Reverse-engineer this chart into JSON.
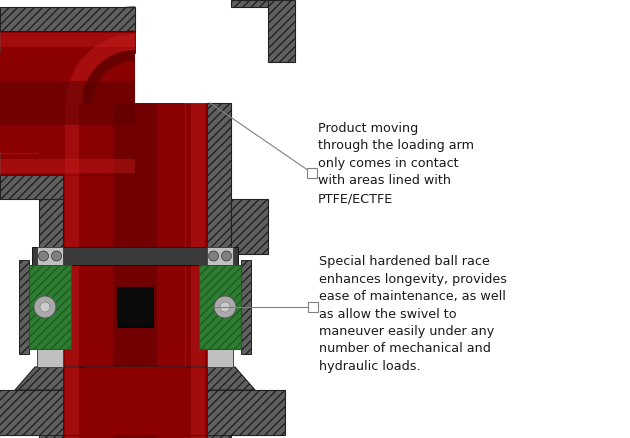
{
  "background_color": "#ffffff",
  "annotation1_text": "Product moving\nthrough the loading arm\nonly comes in contact\nwith areas lined with\nPTFE/ECTFE",
  "annotation2_text": "Special hardened ball race\nenhances longevity, provides\nease of maintenance, as well\nas allow the swivel to\nmaneuver easily under any\nnumber of mechanical and\nhydraulic loads.",
  "hatch_gray": "#606060",
  "hatch_gray2": "#505050",
  "pipe_red": "#8b0000",
  "pipe_red_hi": "#b01010",
  "pipe_red_lo": "#5a0000",
  "pipe_red_bright": "#c82020",
  "green_color": "#2e7d32",
  "green_dark": "#1b5e20",
  "black_color": "#111111",
  "light_gray": "#c0c0c0",
  "mid_gray": "#808080",
  "dark_gray": "#3a3a3a",
  "outline_dark": "#1a1a1a",
  "text_color": "#1a1a1a"
}
